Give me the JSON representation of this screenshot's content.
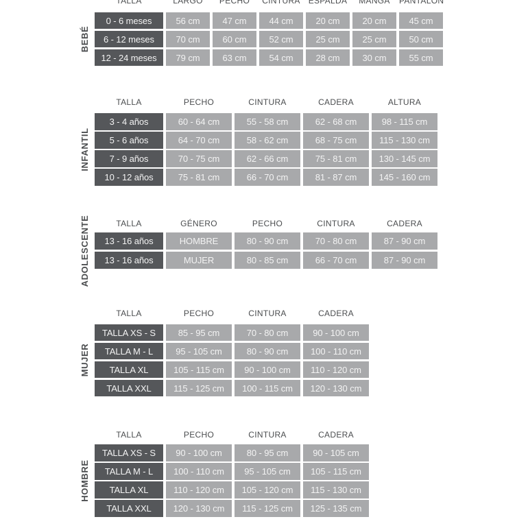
{
  "colors": {
    "page_background": "#ffffff",
    "dark_cell": "#55575a",
    "light_cell": "#a8a9ab",
    "cell_text": "#f3f3f3",
    "header_text": "#4b4d4f"
  },
  "tables": [
    {
      "side_label": "BEBÉ",
      "header_clipped_at_top": true,
      "columns": [
        "TALLA",
        "LARGO",
        "PECHO",
        "CINTURA",
        "ESPALDA",
        "MANGA",
        "PANTALÓN"
      ],
      "rows": [
        [
          "0 - 6 meses",
          "56 cm",
          "47 cm",
          "44 cm",
          "20 cm",
          "20 cm",
          "45 cm"
        ],
        [
          "6 - 12 meses",
          "70 cm",
          "60 cm",
          "52 cm",
          "25 cm",
          "25 cm",
          "50 cm"
        ],
        [
          "12 - 24 meses",
          "79 cm",
          "63 cm",
          "54 cm",
          "28 cm",
          "30 cm",
          "55 cm"
        ]
      ]
    },
    {
      "side_label": "INFANTIL",
      "columns": [
        "TALLA",
        "PECHO",
        "CINTURA",
        "CADERA",
        "ALTURA"
      ],
      "rows": [
        [
          "3 - 4 años",
          "60 - 64 cm",
          "55 - 58 cm",
          "62 - 68 cm",
          "98 - 115 cm"
        ],
        [
          "5 - 6 años",
          "64 - 70 cm",
          "58 - 62 cm",
          "68 - 75 cm",
          "115 - 130 cm"
        ],
        [
          "7 - 9 años",
          "70 - 75 cm",
          "62 - 66 cm",
          "75 - 81 cm",
          "130 - 145 cm"
        ],
        [
          "10 - 12 años",
          "75 - 81 cm",
          "66 - 70 cm",
          "81 - 87 cm",
          "145 - 160 cm"
        ]
      ]
    },
    {
      "side_label": "ADOLESCENTE",
      "columns": [
        "TALLA",
        "GÉNERO",
        "PECHO",
        "CINTURA",
        "CADERA"
      ],
      "rows": [
        [
          "13 - 16 años",
          "HOMBRE",
          "80 - 90 cm",
          "70 - 80 cm",
          "87 - 90 cm"
        ],
        [
          "13 - 16 años",
          "MUJER",
          "80 - 85 cm",
          "66 - 70 cm",
          "87 - 90 cm"
        ]
      ]
    },
    {
      "side_label": "MUJER",
      "columns": [
        "TALLA",
        "PECHO",
        "CINTURA",
        "CADERA"
      ],
      "rows": [
        [
          "TALLA XS - S",
          "85 - 95 cm",
          "70 - 80 cm",
          "90 - 100 cm"
        ],
        [
          "TALLA M - L",
          "95 - 105 cm",
          "80 - 90 cm",
          "100 - 110 cm"
        ],
        [
          "TALLA XL",
          "105 - 115 cm",
          "90 - 100 cm",
          "110 - 120 cm"
        ],
        [
          "TALLA XXL",
          "115 - 125 cm",
          "100 - 115 cm",
          "120 - 130 cm"
        ]
      ]
    },
    {
      "side_label": "HOMBRE",
      "columns": [
        "TALLA",
        "PECHO",
        "CINTURA",
        "CADERA"
      ],
      "rows": [
        [
          "TALLA XS - S",
          "90 - 100 cm",
          "80 - 95 cm",
          "90 - 105 cm"
        ],
        [
          "TALLA M - L",
          "100 - 110 cm",
          "95 - 105 cm",
          "105 - 115 cm"
        ],
        [
          "TALLA XL",
          "110 - 120 cm",
          "105 - 120 cm",
          "115 - 130 cm"
        ],
        [
          "TALLA XXL",
          "120 - 130 cm",
          "115 - 125 cm",
          "125 - 135 cm"
        ]
      ]
    }
  ]
}
